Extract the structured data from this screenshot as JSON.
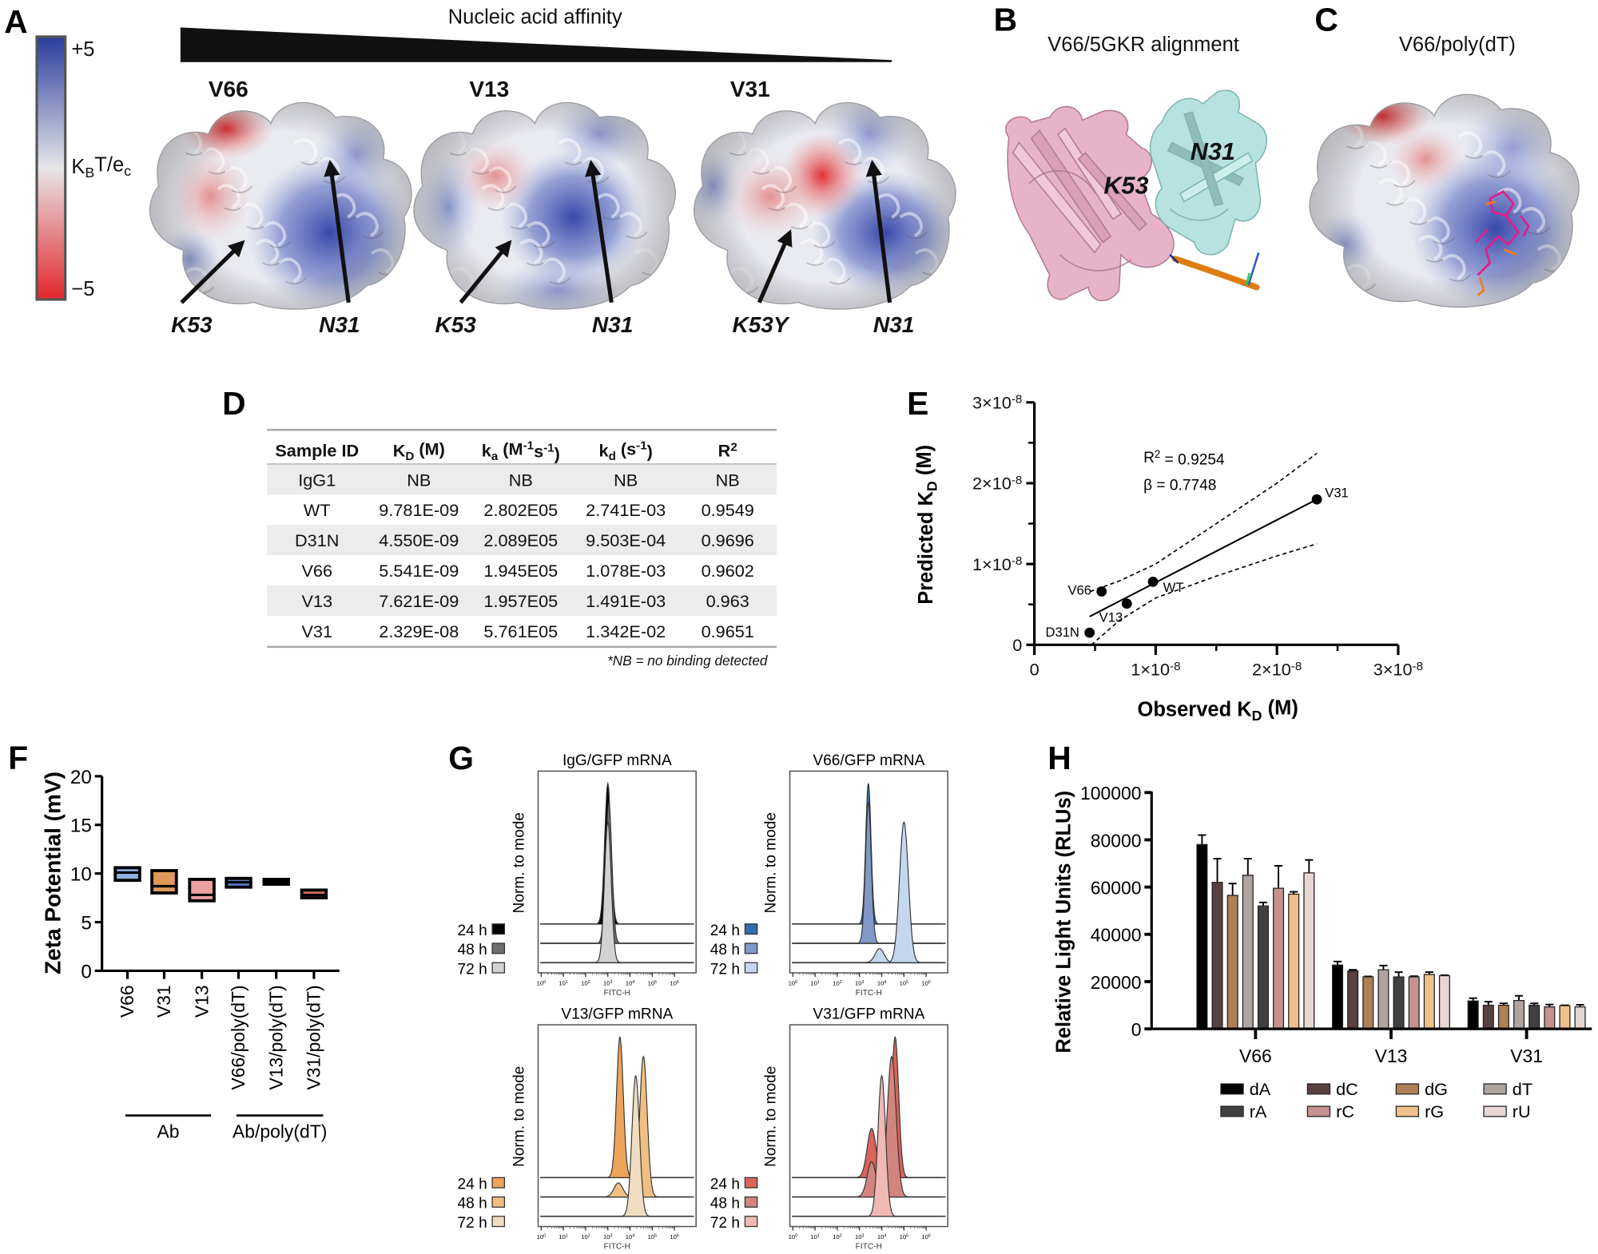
{
  "labels": {
    "A": "A",
    "B": "B",
    "C": "C",
    "D": "D",
    "E": "E",
    "F": "F",
    "G": "G",
    "H": "H"
  },
  "panel_a": {
    "title": "Nucleic acid affinity",
    "colorbar": {
      "max_label": "+5",
      "min_label": "−5",
      "unit": [
        "K",
        {
          "sub": "B"
        },
        "T/e",
        {
          "sub": "c"
        }
      ],
      "colors": {
        "positive": "#2a3c9c",
        "neutral": "#e6e6e8",
        "negative": "#e3262b"
      }
    },
    "structures": [
      {
        "name": "V66",
        "residue_a": "K53",
        "residue_b": "N31"
      },
      {
        "name": "V13",
        "residue_a": "K53",
        "residue_b": "N31"
      },
      {
        "name": "V31",
        "residue_a": "K53Y",
        "residue_b": "N31"
      }
    ]
  },
  "panel_b": {
    "title": "V66/5GKR alignment",
    "residue_a": "K53",
    "residue_b": "N31",
    "colors": {
      "chain_a": "#e6b3c8",
      "chain_b": "#b8e2df",
      "nucleic_acid": "#e07b12"
    }
  },
  "panel_c": {
    "title": "V66/poly(dT)"
  },
  "panel_d": {
    "headers": [
      [
        "Sample ID"
      ],
      [
        "K",
        {
          "sub": "D"
        },
        " (M)"
      ],
      [
        "k",
        {
          "sub": "a"
        },
        " (M",
        {
          "sup": "-1"
        },
        "s",
        {
          "sup": "-1"
        },
        ")"
      ],
      [
        "k",
        {
          "sub": "d"
        },
        " (s",
        {
          "sup": "-1"
        },
        ")"
      ],
      [
        "R",
        {
          "sup": "2"
        }
      ]
    ],
    "rows": [
      [
        "IgG1",
        "NB",
        "NB",
        "NB",
        "NB"
      ],
      [
        "WT",
        "9.781E-09",
        "2.802E05",
        "2.741E-03",
        "0.9549"
      ],
      [
        "D31N",
        "4.550E-09",
        "2.089E05",
        "9.503E-04",
        "0.9696"
      ],
      [
        "V66",
        "5.541E-09",
        "1.945E05",
        "1.078E-03",
        "0.9602"
      ],
      [
        "V13",
        "7.621E-09",
        "1.957E05",
        "1.491E-03",
        "0.963"
      ],
      [
        "V31",
        "2.329E-08",
        "5.761E05",
        "1.342E-02",
        "0.9651"
      ]
    ],
    "footnote": "*NB = no binding detected"
  },
  "chart_data": [
    {
      "panel": "E",
      "type": "scatter",
      "xlabel": [
        "Observed K",
        {
          "sub": "D"
        },
        " (M)"
      ],
      "ylabel": [
        "Predicted K",
        {
          "sub": "D"
        },
        " (M)"
      ],
      "xlim": [
        0,
        3e-08
      ],
      "ylim": [
        0,
        3e-08
      ],
      "xticks": [
        {
          "value": 0,
          "label": [
            "0"
          ]
        },
        {
          "value": 1e-08,
          "label": [
            "1×10",
            {
              "sup": "-8"
            }
          ]
        },
        {
          "value": 2e-08,
          "label": [
            "2×10",
            {
              "sup": "-8"
            }
          ]
        },
        {
          "value": 3e-08,
          "label": [
            "3×10",
            {
              "sup": "-8"
            }
          ]
        }
      ],
      "yticks": [
        {
          "value": 0,
          "label": [
            "0"
          ]
        },
        {
          "value": 1e-08,
          "label": [
            "1×10",
            {
              "sup": "-8"
            }
          ]
        },
        {
          "value": 2e-08,
          "label": [
            "2×10",
            {
              "sup": "-8"
            }
          ]
        },
        {
          "value": 3e-08,
          "label": [
            "3×10",
            {
              "sup": "-8"
            }
          ]
        }
      ],
      "points": [
        {
          "label": "V66",
          "x": 5.541e-09,
          "y": 6.6e-09
        },
        {
          "label": "WT",
          "x": 9.781e-09,
          "y": 7.8e-09
        },
        {
          "label": "V13",
          "x": 7.621e-09,
          "y": 5.1e-09
        },
        {
          "label": "D31N",
          "x": 4.55e-09,
          "y": 1.5e-09
        },
        {
          "label": "V31",
          "x": 2.329e-08,
          "y": 1.8e-08
        }
      ],
      "fit": {
        "x": [
          4.55e-09,
          2.329e-08
        ],
        "y": [
          3.5e-09,
          1.8e-08
        ]
      },
      "confidence_band": {
        "upper": [
          [
            4.6e-09,
            6.6e-09
          ],
          [
            7e-09,
            7.9e-09
          ],
          [
            1e-08,
            1e-08
          ],
          [
            1.5e-08,
            1.5e-08
          ],
          [
            2e-08,
            2e-08
          ],
          [
            2.33e-08,
            2.37e-08
          ]
        ],
        "lower": [
          [
            4.7e-09,
            0
          ],
          [
            7e-09,
            3e-09
          ],
          [
            1e-08,
            5.8e-09
          ],
          [
            1.5e-08,
            8.5e-09
          ],
          [
            2e-08,
            1.1e-08
          ],
          [
            2.33e-08,
            1.25e-08
          ]
        ]
      },
      "annotations": {
        "r2": [
          "R",
          {
            "sup": "2"
          },
          " = 0.9254"
        ],
        "beta": "β = 0.7748"
      }
    },
    {
      "panel": "F",
      "type": "box",
      "ylabel": "Zeta Potential (mV)",
      "ylim": [
        0,
        20
      ],
      "yticks": [
        "0",
        "5",
        "10",
        "15",
        "20"
      ],
      "categories": [
        "V66",
        "V31",
        "V13",
        "V66/poly(dT)",
        "V13/poly(dT)",
        "V31/poly(dT)"
      ],
      "boxes": [
        {
          "low": 9.3,
          "mid": 10.1,
          "high": 10.6,
          "color": "#8fb0dc"
        },
        {
          "low": 8.0,
          "mid": 8.7,
          "high": 10.3,
          "color": "#e0995a"
        },
        {
          "low": 7.2,
          "mid": 7.8,
          "high": 9.4,
          "color": "#eca0a0"
        },
        {
          "low": 8.6,
          "mid": 9.1,
          "high": 9.5,
          "color": "#5b83c9"
        },
        {
          "low": 8.9,
          "mid": 9.15,
          "high": 9.4,
          "color": "#000000"
        },
        {
          "low": 7.5,
          "mid": 7.8,
          "high": 8.3,
          "color": "#d8735a"
        }
      ],
      "groups": [
        {
          "label": "Ab",
          "from": 0,
          "to": 2
        },
        {
          "label": "Ab/poly(dT)",
          "from": 3,
          "to": 5
        }
      ]
    },
    {
      "panel": "G",
      "type": "histogram",
      "xlabel": "FITC-H",
      "ylabel": "Norm. to mode",
      "x_scale": "log",
      "xticks": [
        [
          "10",
          {
            "sup": "0"
          }
        ],
        [
          "10",
          {
            "sup": "1"
          }
        ],
        [
          "10",
          {
            "sup": "2"
          }
        ],
        [
          "10",
          {
            "sup": "3"
          }
        ],
        [
          "10",
          {
            "sup": "4"
          }
        ],
        [
          "10",
          {
            "sup": "5"
          }
        ],
        [
          "10",
          {
            "sup": "6"
          }
        ]
      ],
      "plots": [
        {
          "title": "IgG/GFP mRNA",
          "series": [
            {
              "label": "24 h",
              "color": "#000000",
              "mode_fitc": 1000,
              "spread_decades": 0.14
            },
            {
              "label": "48 h",
              "color": "#6e6e6e",
              "mode_fitc": 1100,
              "spread_decades": 0.14
            },
            {
              "label": "72 h",
              "color": "#d2d2d2",
              "mode_fitc": 1000,
              "spread_decades": 0.15
            }
          ]
        },
        {
          "title": "V66/GFP mRNA",
          "series": [
            {
              "label": "24 h",
              "color": "#2f6db0",
              "mode_fitc": 2500,
              "spread_decades": 0.12
            },
            {
              "label": "48 h",
              "color": "#8099c6",
              "mode_fitc": 2500,
              "spread_decades": 0.13
            },
            {
              "label": "72 h",
              "color": "#c5d6ef",
              "mode_fitc": 100000,
              "spread_decades": 0.2,
              "shoulder_fitc": 8000,
              "shoulder_rel": 0.1
            }
          ]
        },
        {
          "title": "V13/GFP mRNA",
          "series": [
            {
              "label": "24 h",
              "color": "#eda458",
              "mode_fitc": 3500,
              "spread_decades": 0.15
            },
            {
              "label": "48 h",
              "color": "#f1bf82",
              "mode_fitc": 40000,
              "spread_decades": 0.17,
              "shoulder_fitc": 3000,
              "shoulder_rel": 0.1
            },
            {
              "label": "72 h",
              "color": "#f0dcc0",
              "mode_fitc": 18000,
              "spread_decades": 0.17
            }
          ]
        },
        {
          "title": "V31/GFP mRNA",
          "series": [
            {
              "label": "24 h",
              "color": "#d9635a",
              "mode_fitc": 40000,
              "spread_decades": 0.16,
              "shoulder_fitc": 3500,
              "shoulder_rel": 0.35
            },
            {
              "label": "48 h",
              "color": "#d2847e",
              "mode_fitc": 28000,
              "spread_decades": 0.2,
              "shoulder_fitc": 3500,
              "shoulder_rel": 0.25
            },
            {
              "label": "72 h",
              "color": "#efbab3",
              "mode_fitc": 10000,
              "spread_decades": 0.17
            }
          ]
        }
      ]
    },
    {
      "panel": "H",
      "type": "bar",
      "ylabel": "Relative Light Units (RLUs)",
      "ylim": [
        0,
        100000
      ],
      "yticks": [
        "0",
        "20000",
        "40000",
        "60000",
        "80000",
        "100000"
      ],
      "categories": [
        "V66",
        "V13",
        "V31"
      ],
      "series": [
        {
          "name": "dA",
          "color": "#000000",
          "values": [
            78000,
            27000,
            11800
          ],
          "errors": [
            4000,
            1500,
            1200
          ]
        },
        {
          "name": "dC",
          "color": "#5a4040",
          "values": [
            62000,
            24500,
            10000
          ],
          "errors": [
            10000,
            500,
            1500
          ]
        },
        {
          "name": "dG",
          "color": "#b07f54",
          "values": [
            56500,
            22000,
            10000
          ],
          "errors": [
            5000,
            200,
            800
          ]
        },
        {
          "name": "dT",
          "color": "#b0a4a0",
          "values": [
            65000,
            25000,
            12000
          ],
          "errors": [
            7000,
            1800,
            2000
          ]
        },
        {
          "name": "rA",
          "color": "#404040",
          "values": [
            52000,
            22000,
            10000
          ],
          "errors": [
            1500,
            2000,
            800
          ]
        },
        {
          "name": "rC",
          "color": "#c49090",
          "values": [
            59500,
            22000,
            9300
          ],
          "errors": [
            9500,
            300,
            1000
          ]
        },
        {
          "name": "rG",
          "color": "#f0c08a",
          "values": [
            57000,
            23000,
            9800
          ],
          "errors": [
            1000,
            1000,
            200
          ]
        },
        {
          "name": "rU",
          "color": "#e6d6d4",
          "values": [
            66000,
            22500,
            9300
          ],
          "errors": [
            5500,
            200,
            900
          ]
        }
      ]
    }
  ]
}
